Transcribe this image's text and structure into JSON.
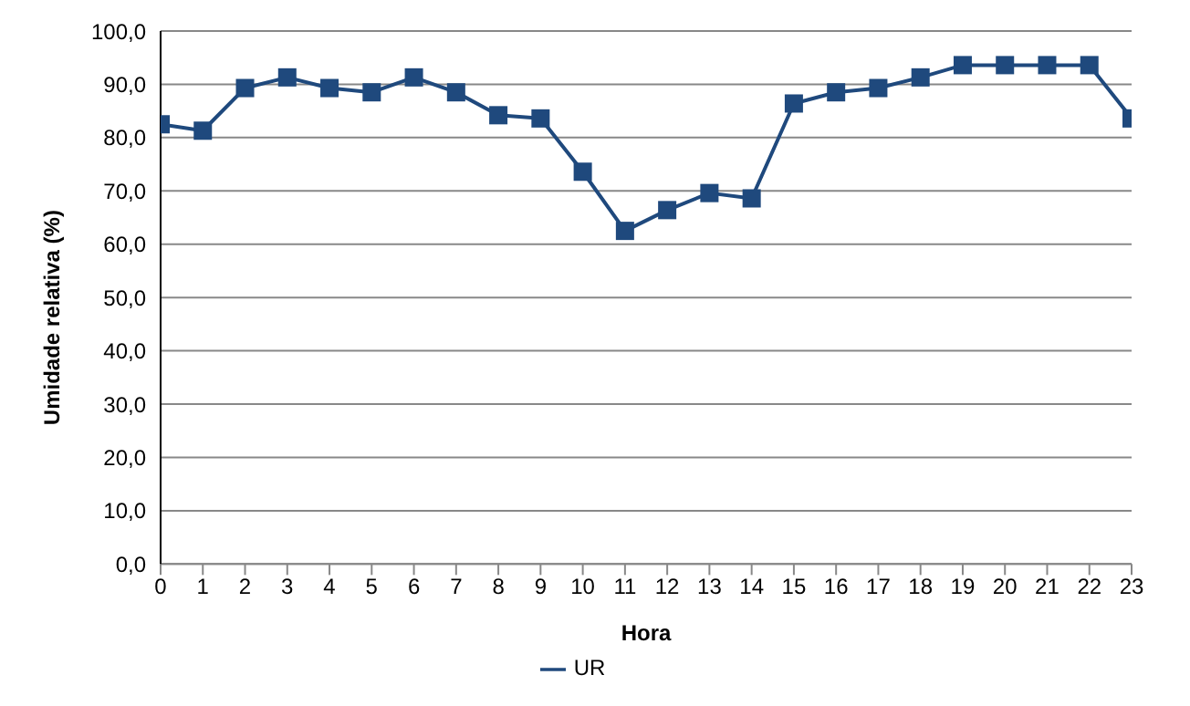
{
  "chart_data": {
    "type": "line",
    "xlabel": "Hora",
    "ylabel": "Umidade relativa (%)",
    "x": [
      0,
      1,
      2,
      3,
      4,
      5,
      6,
      7,
      8,
      9,
      10,
      11,
      12,
      13,
      14,
      15,
      16,
      17,
      18,
      19,
      20,
      21,
      22,
      23
    ],
    "series": [
      {
        "name": "UR",
        "color": "#1f497d",
        "values": [
          82.5,
          81.3,
          89.3,
          91.3,
          89.3,
          88.5,
          91.3,
          88.5,
          84.2,
          83.6,
          73.6,
          62.5,
          66.4,
          69.6,
          68.6,
          86.4,
          88.5,
          89.3,
          91.3,
          93.6,
          93.6,
          93.6,
          93.6,
          83.6
        ]
      }
    ],
    "xlim": [
      0,
      23
    ],
    "xticks": [
      0,
      1,
      2,
      3,
      4,
      5,
      6,
      7,
      8,
      9,
      10,
      11,
      12,
      13,
      14,
      15,
      16,
      17,
      18,
      19,
      20,
      21,
      22,
      23
    ],
    "ylim": [
      0,
      100
    ],
    "yticks": [
      {
        "value": 0,
        "label": "0,0"
      },
      {
        "value": 10,
        "label": "10,0"
      },
      {
        "value": 20,
        "label": "20,0"
      },
      {
        "value": 30,
        "label": "30,0"
      },
      {
        "value": 40,
        "label": "40,0"
      },
      {
        "value": 50,
        "label": "50,0"
      },
      {
        "value": 60,
        "label": "60,0"
      },
      {
        "value": 70,
        "label": "70,0"
      },
      {
        "value": 80,
        "label": "80,0"
      },
      {
        "value": 90,
        "label": "90,0"
      },
      {
        "value": 100,
        "label": "100,0"
      }
    ],
    "grid": "y",
    "legend": "bottom",
    "marker": "square",
    "line_style": "solid"
  }
}
